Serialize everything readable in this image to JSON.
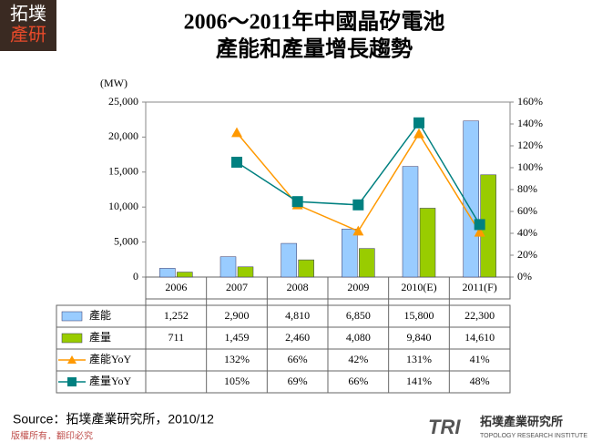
{
  "logo": {
    "line1": "拓墣",
    "line2": "產研"
  },
  "chart_data": {
    "type": "bar",
    "title": [
      "2006～2011年中國晶矽電池",
      "產能和產量增長趨勢"
    ],
    "y_label": "(MW)",
    "categories": [
      "2006",
      "2007",
      "2008",
      "2009",
      "2010(E)",
      "2011(F)"
    ],
    "series": [
      {
        "name": "產能",
        "type": "bar",
        "color": "#99ccff",
        "values": [
          1252,
          2900,
          4810,
          6850,
          15800,
          22300
        ],
        "value_labels": [
          "1,252",
          "2,900",
          "4,810",
          "6,850",
          "15,800",
          "22,300"
        ]
      },
      {
        "name": "產量",
        "type": "bar",
        "color": "#99cc00",
        "values": [
          711,
          1459,
          2460,
          4080,
          9840,
          14610
        ],
        "value_labels": [
          "711",
          "1,459",
          "2,460",
          "4,080",
          "9,840",
          "14,610"
        ]
      },
      {
        "name": "產能YoY",
        "type": "line",
        "marker": "triangle",
        "axis": "y2",
        "color": "#ff9900",
        "values": [
          null,
          132,
          66,
          42,
          131,
          41
        ],
        "value_labels": [
          null,
          "132%",
          "66%",
          "42%",
          "131%",
          "41%"
        ]
      },
      {
        "name": "產量YoY",
        "type": "line",
        "marker": "square",
        "axis": "y2",
        "color": "#008080",
        "values": [
          null,
          105,
          69,
          66,
          141,
          48
        ],
        "value_labels": [
          null,
          "105%",
          "69%",
          "66%",
          "141%",
          "48%"
        ]
      }
    ],
    "ylim": [
      0,
      25000
    ],
    "yticks": [
      0,
      {
        "value": 5000,
        "label": "5,000"
      },
      {
        "value": 10000,
        "label": "10,000"
      },
      {
        "value": 15000,
        "label": "15,000"
      },
      {
        "value": 20000,
        "label": "20,000"
      },
      {
        "value": 25000,
        "label": "25,000"
      }
    ],
    "y2lim": [
      0,
      160
    ],
    "y2ticks": [
      {
        "value": 0,
        "label": "0%"
      },
      {
        "value": 20,
        "label": "20%"
      },
      {
        "value": 40,
        "label": "40%"
      },
      {
        "value": 60,
        "label": "60%"
      },
      {
        "value": 80,
        "label": "80%"
      },
      {
        "value": 100,
        "label": "100%"
      },
      {
        "value": 120,
        "label": "120%"
      },
      {
        "value": 140,
        "label": "140%"
      },
      {
        "value": 160,
        "label": "160%"
      }
    ]
  },
  "source": "Source：拓墣產業研究所，2010/12",
  "footer": "版權所有．翻印必究",
  "brand": {
    "mark": "TRI",
    "name": "拓墣產業研究所",
    "english": "TOPOLOGY RESEARCH INSTITUTE"
  }
}
